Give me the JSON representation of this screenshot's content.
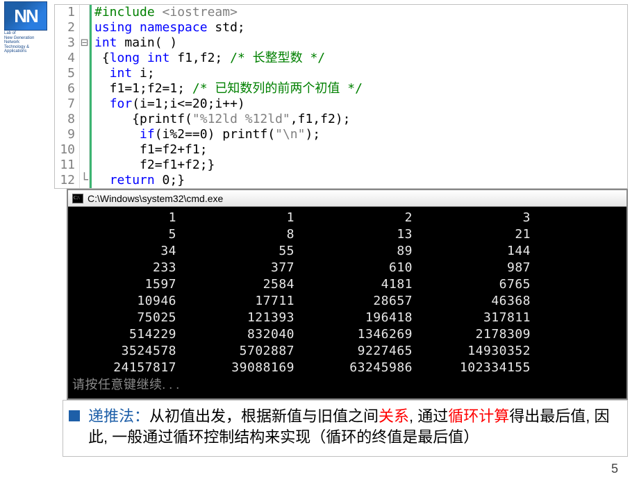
{
  "logo": {
    "initials": "NN",
    "sub1": "Lab of",
    "sub2": "New Generation Network",
    "sub3": "Technology & Applications"
  },
  "code": {
    "lines": [
      {
        "n": "1",
        "gut": "",
        "html": "<span class='dir'>#include</span> <span class='incang'>&lt;iostream&gt;</span>"
      },
      {
        "n": "2",
        "gut": "",
        "html": "<span class='kw'>using</span> <span class='kw'>namespace</span> std;"
      },
      {
        "n": "3",
        "gut": "⊟",
        "html": "<span class='kw'>int</span> main( )"
      },
      {
        "n": "4",
        "gut": "",
        "html": " {<span class='kw'>long</span> <span class='kw'>int</span> f1,f2; <span class='cmt'>/* 长整型数 */</span>"
      },
      {
        "n": "5",
        "gut": "",
        "html": "  <span class='kw'>int</span> i;"
      },
      {
        "n": "6",
        "gut": "",
        "html": "  f1=1;f2=1; <span class='cmt'>/* 已知数列的前两个初值 */</span>"
      },
      {
        "n": "7",
        "gut": "",
        "html": "  <span class='kw'>for</span>(i=1;i&lt;=20;i++)"
      },
      {
        "n": "8",
        "gut": "",
        "html": "     {printf(<span class='str'>\"%12ld %12ld\"</span>,f1,f2);"
      },
      {
        "n": "9",
        "gut": "",
        "html": "      <span class='kw'>if</span>(i%2==0) printf(<span class='str'>\"\\n\"</span>);"
      },
      {
        "n": "10",
        "gut": "",
        "html": "      f1=f2+f1;"
      },
      {
        "n": "11",
        "gut": "",
        "html": "      f2=f1+f2;}"
      },
      {
        "n": "12",
        "gut": "└",
        "html": "  <span class='kw'>return</span> 0;}"
      }
    ]
  },
  "console": {
    "title": "C:\\Windows\\system32\\cmd.exe",
    "rows": [
      [
        "1",
        "1",
        "2",
        "3"
      ],
      [
        "5",
        "8",
        "13",
        "21"
      ],
      [
        "34",
        "55",
        "89",
        "144"
      ],
      [
        "233",
        "377",
        "610",
        "987"
      ],
      [
        "1597",
        "2584",
        "4181",
        "6765"
      ],
      [
        "10946",
        "17711",
        "28657",
        "46368"
      ],
      [
        "75025",
        "121393",
        "196418",
        "317811"
      ],
      [
        "514229",
        "832040",
        "1346269",
        "2178309"
      ],
      [
        "3524578",
        "5702887",
        "9227465",
        "14930352"
      ],
      [
        "24157817",
        "39088169",
        "63245986",
        "102334155"
      ]
    ],
    "prompt": "请按任意键继续. . ."
  },
  "note": {
    "t1": "递推法：",
    "t2": "从初值出发，根据新值与旧值之间",
    "t3": "关系",
    "t4": ", 通过",
    "t5": "循环计算",
    "t6": "得出最后值, 因此, 一般通过循环控制结构来实现（循环的终值是最后值）"
  },
  "pagenum": "5"
}
